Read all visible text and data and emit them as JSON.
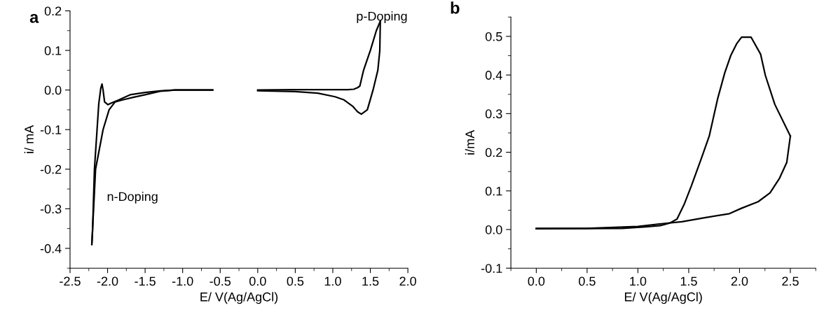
{
  "chart_data": [
    {
      "type": "line",
      "title": "a",
      "xlabel": "E/ V(Ag/AgCl)",
      "ylabel": "i/ mA",
      "xlim": [
        -2.5,
        2.0
      ],
      "ylim": [
        -0.45,
        0.2
      ],
      "xticks": [
        -2.5,
        {
          "value": -2,
          "label": "-2.0"
        },
        -1.5,
        {
          "value": -1,
          "label": "-1.0"
        },
        -0.5,
        {
          "value": 0,
          "label": "0.0"
        },
        0.5,
        {
          "value": 1,
          "label": "1.0"
        },
        1.5,
        {
          "value": 2,
          "label": "2.0"
        }
      ],
      "yticks": [
        -0.4,
        -0.3,
        -0.2,
        -0.1,
        {
          "value": 0,
          "label": "0.0"
        },
        0.1,
        0.2
      ],
      "grid": false,
      "legend": false,
      "marker": "none",
      "line_style": "solid",
      "annotations": [
        "n-Doping",
        "p-Doping"
      ],
      "series": [
        {
          "color": "#000000",
          "x": [
            -2.21,
            -2.16,
            -2.06,
            -1.98,
            -1.9,
            -1.8,
            -1.65,
            -1.5,
            -1.3,
            -1.1,
            -0.6
          ],
          "values": [
            -0.39,
            -0.2,
            -0.1,
            -0.05,
            -0.03,
            -0.025,
            -0.018,
            -0.012,
            -0.003,
            0.0,
            0.0
          ]
        },
        {
          "color": "#000000",
          "x": [
            -2.21,
            -2.2,
            -2.175,
            -2.117,
            -2.09,
            -2.074,
            -2.06,
            -2.04,
            -1.995,
            -1.95,
            -1.85,
            -1.7,
            -1.5,
            -1.3,
            -1.1,
            -0.6
          ],
          "values": [
            -0.39,
            -0.355,
            -0.2,
            -0.034,
            0.005,
            0.015,
            0.0,
            -0.03,
            -0.037,
            -0.033,
            -0.025,
            -0.012,
            -0.006,
            -0.002,
            0.0,
            0.0
          ]
        },
        {
          "color": "#000000",
          "x": [
            0.0,
            0.5,
            1.0,
            1.2,
            1.28,
            1.33,
            1.36,
            1.41,
            1.5,
            1.58,
            1.633
          ],
          "values": [
            0.0,
            0.001,
            0.001,
            0.001,
            0.002,
            0.006,
            0.01,
            0.05,
            0.1,
            0.15,
            0.174
          ]
        },
        {
          "color": "#000000",
          "x": [
            0.0,
            0.5,
            0.8,
            1.03,
            1.15,
            1.265,
            1.33,
            1.38,
            1.46,
            1.536,
            1.6,
            1.626,
            1.633
          ],
          "values": [
            -0.002,
            -0.004,
            -0.008,
            -0.017,
            -0.025,
            -0.041,
            -0.055,
            -0.061,
            -0.05,
            0.0,
            0.05,
            0.1,
            0.174
          ]
        }
      ]
    },
    {
      "type": "line",
      "title": "b",
      "xlabel": "E/ V(Ag/AgCl)",
      "ylabel": "i/mA",
      "xlim": [
        -0.25,
        2.75
      ],
      "ylim": [
        -0.1,
        0.55
      ],
      "xticks": [
        {
          "value": 0,
          "label": "0.0"
        },
        0.5,
        {
          "value": 1,
          "label": "1.0"
        },
        1.5,
        {
          "value": 2,
          "label": "2.0"
        },
        2.5
      ],
      "yticks": [
        -0.1,
        {
          "value": 0,
          "label": "0.0"
        },
        0.1,
        0.2,
        0.3,
        0.4,
        0.5
      ],
      "grid": false,
      "legend": false,
      "marker": "none",
      "line_style": "solid",
      "series": [
        {
          "color": "#000000",
          "x": [
            0.0,
            0.5,
            1.0,
            1.197,
            1.432,
            1.667,
            1.901,
            2.019,
            2.183,
            2.3,
            2.394,
            2.465,
            2.5
          ],
          "values": [
            0.003,
            0.003,
            0.008,
            0.014,
            0.02,
            0.031,
            0.041,
            0.055,
            0.072,
            0.095,
            0.133,
            0.174,
            0.242
          ]
        },
        {
          "color": "#000000",
          "x": [
            0.0,
            0.845,
            1.08,
            1.22,
            1.315,
            1.385,
            1.455,
            1.526,
            1.62,
            1.702,
            1.784,
            1.855,
            1.913,
            1.972,
            2.02,
            2.113,
            2.207,
            2.254,
            2.347,
            2.5
          ],
          "values": [
            0.002,
            0.003,
            0.007,
            0.01,
            0.017,
            0.027,
            0.065,
            0.113,
            0.181,
            0.242,
            0.338,
            0.406,
            0.45,
            0.481,
            0.498,
            0.498,
            0.454,
            0.399,
            0.324,
            0.242
          ]
        }
      ]
    }
  ]
}
